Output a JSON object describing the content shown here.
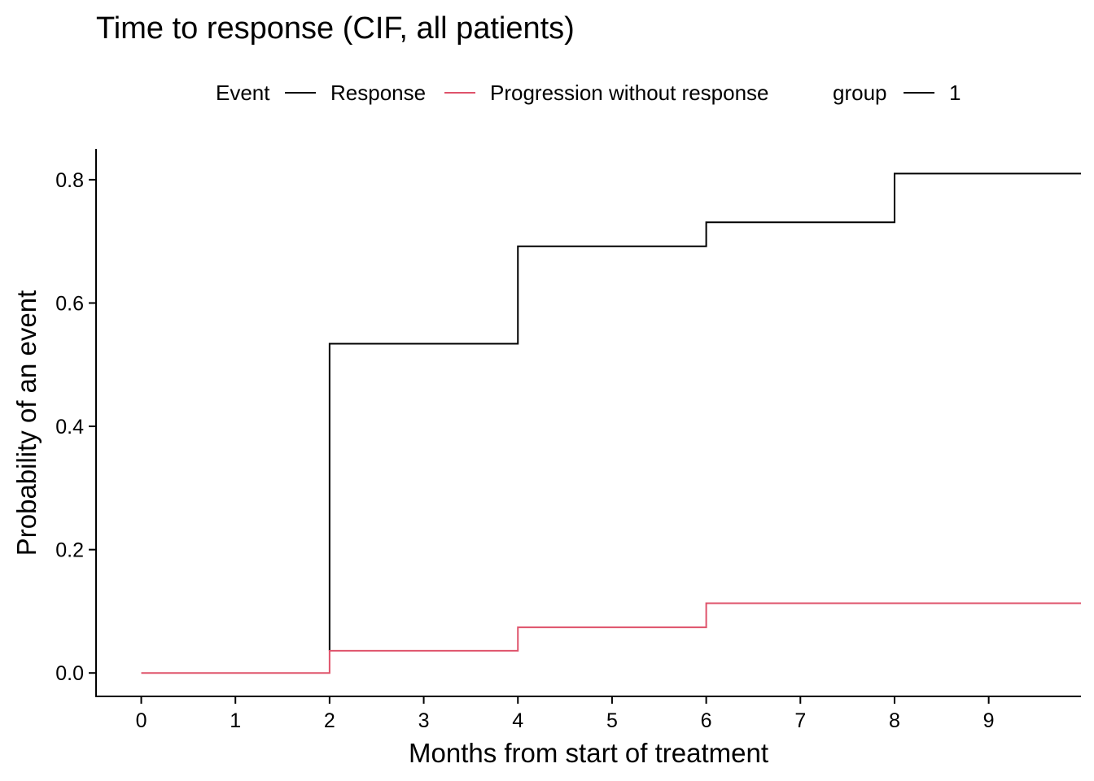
{
  "chart_data": {
    "type": "line",
    "step": true,
    "title": "Time to response (CIF, all patients)",
    "xlabel": "Months from start of treatment",
    "ylabel": "Probability of an event",
    "xlim": [
      -0.48,
      9.98
    ],
    "ylim": [
      -0.038,
      0.85
    ],
    "x_ticks": [
      0,
      1,
      2,
      3,
      4,
      5,
      6,
      7,
      8,
      9
    ],
    "y_ticks": [
      0.0,
      0.2,
      0.4,
      0.6,
      0.8
    ],
    "y_tick_labels": [
      "0.0",
      "0.2",
      "0.4",
      "0.6",
      "0.8"
    ],
    "legend": {
      "placement": "top",
      "event_title": "Event",
      "event_items": [
        {
          "label": "Response",
          "color": "#000000"
        },
        {
          "label": "Progression without response",
          "color": "#DF536B"
        }
      ],
      "group_title": "group",
      "group_items": [
        {
          "label": "1",
          "color": "#000000"
        }
      ]
    },
    "series": [
      {
        "name": "Response",
        "color": "#000000",
        "x": [
          2,
          2,
          4,
          4,
          6,
          6,
          8,
          8,
          9.98
        ],
        "y": [
          0.036,
          0.534,
          0.534,
          0.692,
          0.692,
          0.731,
          0.731,
          0.81,
          0.81
        ]
      },
      {
        "name": "Progression without response",
        "color": "#DF536B",
        "x": [
          0,
          2,
          2,
          4,
          4,
          6,
          6,
          9.98
        ],
        "y": [
          0,
          0,
          0.036,
          0.036,
          0.074,
          0.074,
          0.113,
          0.113
        ]
      }
    ]
  }
}
